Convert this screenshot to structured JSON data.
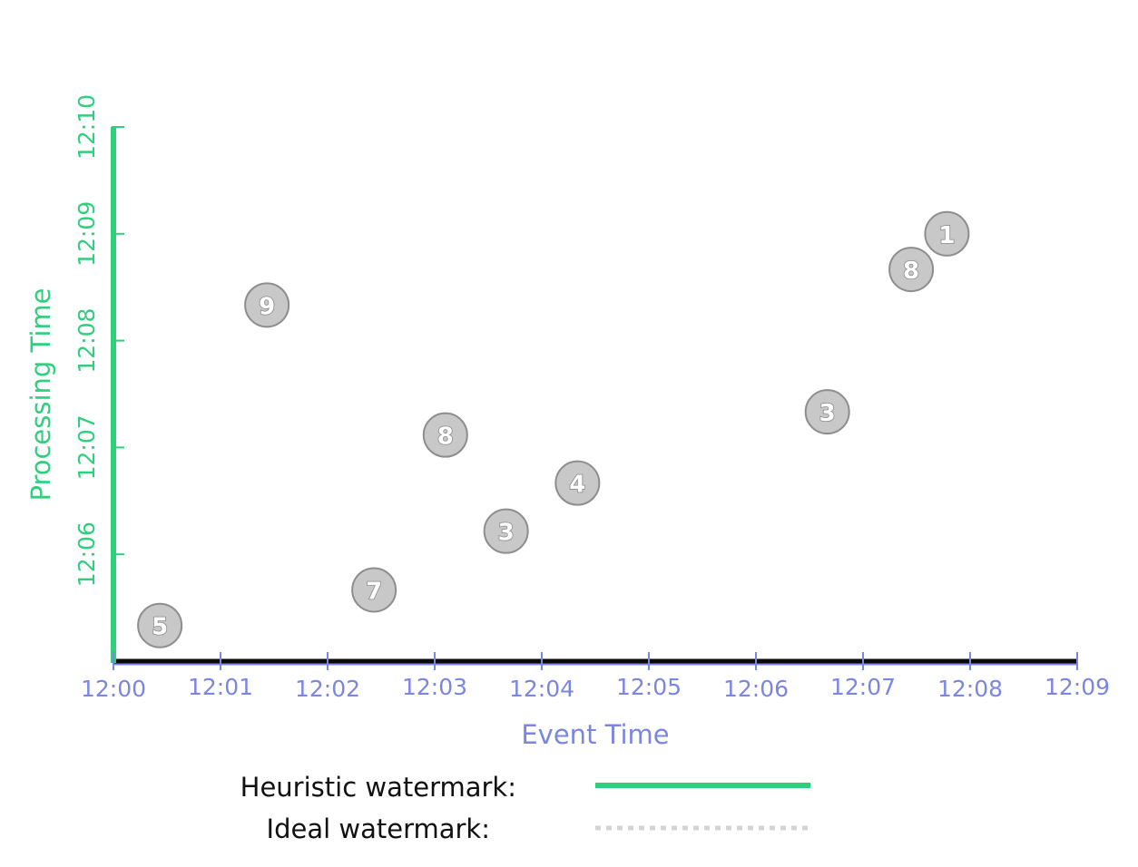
{
  "chart_data": {
    "type": "scatter",
    "xlabel": "Event Time",
    "ylabel": "Processing Time",
    "x_ticks": [
      "12:00",
      "12:01",
      "12:02",
      "12:03",
      "12:04",
      "12:05",
      "12:06",
      "12:07",
      "12:08",
      "12:09"
    ],
    "y_ticks": [
      "12:06",
      "12:07",
      "12:08",
      "12:09",
      "12:10"
    ],
    "xlim": [
      "12:00",
      "12:09"
    ],
    "ylim": [
      "12:05",
      "12:10"
    ],
    "grid": false,
    "points": [
      {
        "x": "12:00:26",
        "y": "12:05:20",
        "label": "5"
      },
      {
        "x": "12:01:26",
        "y": "12:08:20",
        "label": "9"
      },
      {
        "x": "12:02:26",
        "y": "12:05:40",
        "label": "7"
      },
      {
        "x": "12:03:06",
        "y": "12:07:07",
        "label": "8"
      },
      {
        "x": "12:03:40",
        "y": "12:06:13",
        "label": "3"
      },
      {
        "x": "12:04:20",
        "y": "12:06:40",
        "label": "4"
      },
      {
        "x": "12:06:40",
        "y": "12:07:20",
        "label": "3"
      },
      {
        "x": "12:07:27",
        "y": "12:08:40",
        "label": "8"
      },
      {
        "x": "12:07:47",
        "y": "12:09:00",
        "label": "1"
      }
    ],
    "legend": {
      "placement": "bottom",
      "items": [
        {
          "label": "Heuristic watermark:",
          "color": "#2fcf7b",
          "style": "solid"
        },
        {
          "label": "Ideal watermark:",
          "color": "#d4d4d4",
          "style": "dotted"
        }
      ]
    },
    "colors": {
      "x_axis": "#7b86e0",
      "y_axis": "#2fcf7b",
      "heuristic_watermark": "#2fcf7b",
      "ideal_watermark": "#d4d4d4",
      "point_fill": "#c8c8c8",
      "point_stroke": "#8d8d8d"
    }
  }
}
